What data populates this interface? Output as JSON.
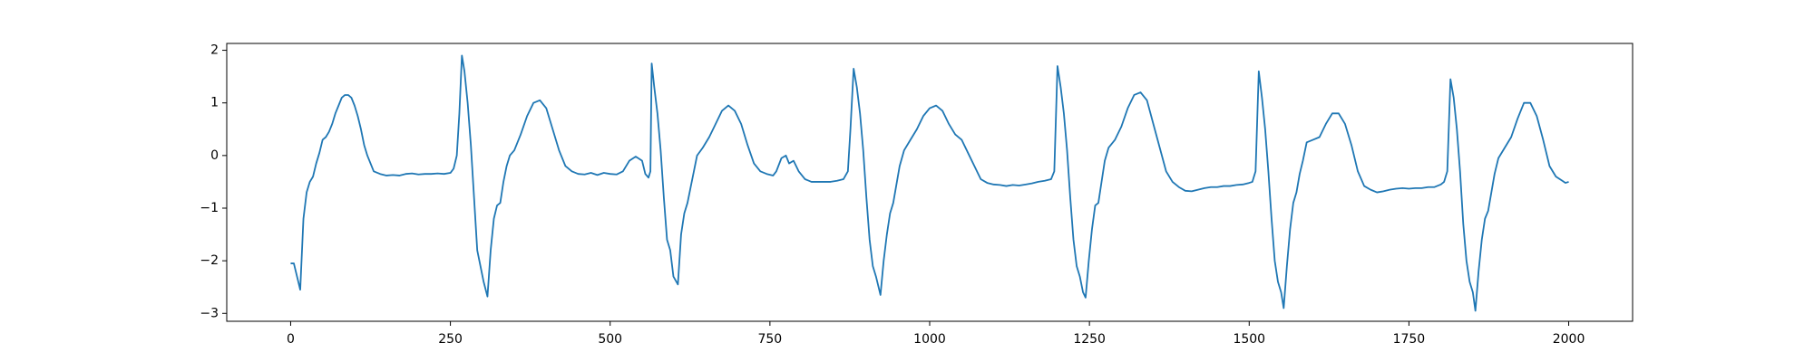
{
  "chart_data": {
    "type": "line",
    "x": [
      0,
      5,
      10,
      15,
      20,
      25,
      30,
      35,
      40,
      45,
      50,
      55,
      60,
      65,
      70,
      75,
      80,
      85,
      90,
      95,
      100,
      105,
      110,
      115,
      120,
      125,
      130,
      140,
      150,
      160,
      170,
      180,
      190,
      200,
      210,
      220,
      230,
      240,
      250,
      255,
      260,
      264,
      268,
      272,
      277,
      282,
      287,
      292,
      297,
      302,
      308,
      313,
      318,
      323,
      328,
      333,
      338,
      343,
      350,
      360,
      370,
      380,
      390,
      400,
      410,
      420,
      430,
      440,
      450,
      460,
      470,
      480,
      490,
      500,
      510,
      520,
      530,
      540,
      550,
      555,
      560,
      563,
      565,
      569,
      574,
      579,
      584,
      589,
      594,
      599,
      606,
      611,
      616,
      621,
      626,
      631,
      636,
      645,
      655,
      665,
      675,
      685,
      695,
      705,
      715,
      725,
      735,
      745,
      755,
      760,
      768,
      775,
      780,
      787,
      795,
      805,
      815,
      825,
      835,
      845,
      855,
      865,
      872,
      876,
      881,
      886,
      891,
      896,
      901,
      906,
      911,
      916,
      923,
      928,
      933,
      938,
      943,
      948,
      953,
      960,
      970,
      980,
      990,
      1000,
      1010,
      1020,
      1030,
      1040,
      1050,
      1060,
      1070,
      1080,
      1090,
      1100,
      1110,
      1120,
      1130,
      1140,
      1150,
      1160,
      1170,
      1180,
      1190,
      1195,
      1200,
      1205,
      1210,
      1215,
      1220,
      1225,
      1230,
      1235,
      1240,
      1244,
      1249,
      1254,
      1259,
      1264,
      1269,
      1274,
      1280,
      1290,
      1300,
      1310,
      1320,
      1330,
      1340,
      1350,
      1360,
      1370,
      1380,
      1390,
      1400,
      1410,
      1420,
      1430,
      1440,
      1450,
      1460,
      1470,
      1480,
      1490,
      1500,
      1505,
      1510,
      1515,
      1520,
      1525,
      1530,
      1535,
      1540,
      1545,
      1550,
      1554,
      1559,
      1564,
      1569,
      1574,
      1579,
      1584,
      1590,
      1600,
      1610,
      1620,
      1630,
      1640,
      1650,
      1660,
      1670,
      1680,
      1690,
      1700,
      1710,
      1720,
      1730,
      1740,
      1750,
      1760,
      1770,
      1780,
      1790,
      1800,
      1805,
      1810,
      1815,
      1820,
      1825,
      1830,
      1835,
      1840,
      1845,
      1850,
      1854,
      1859,
      1864,
      1869,
      1874,
      1879,
      1884,
      1890,
      1900,
      1910,
      1920,
      1930,
      1940,
      1950,
      1960,
      1970,
      1980,
      1990,
      1995,
      2000
    ],
    "series": [
      {
        "color": "#1f77b4",
        "values": [
          -2.05,
          -2.05,
          -2.3,
          -2.55,
          -1.2,
          -0.7,
          -0.5,
          -0.4,
          -0.15,
          0.05,
          0.3,
          0.35,
          0.45,
          0.6,
          0.8,
          0.95,
          1.1,
          1.15,
          1.15,
          1.1,
          0.95,
          0.75,
          0.5,
          0.2,
          0.0,
          -0.15,
          -0.3,
          -0.35,
          -0.38,
          -0.37,
          -0.38,
          -0.35,
          -0.34,
          -0.36,
          -0.35,
          -0.35,
          -0.34,
          -0.35,
          -0.33,
          -0.25,
          0.0,
          0.8,
          1.9,
          1.6,
          1.0,
          0.2,
          -0.8,
          -1.8,
          -2.1,
          -2.4,
          -2.68,
          -1.8,
          -1.2,
          -0.95,
          -0.9,
          -0.5,
          -0.2,
          0.0,
          0.1,
          0.4,
          0.75,
          1.0,
          1.05,
          0.9,
          0.5,
          0.1,
          -0.2,
          -0.3,
          -0.35,
          -0.36,
          -0.33,
          -0.37,
          -0.33,
          -0.35,
          -0.36,
          -0.3,
          -0.1,
          -0.02,
          -0.1,
          -0.35,
          -0.42,
          -0.3,
          1.75,
          1.3,
          0.8,
          0.1,
          -0.8,
          -1.6,
          -1.8,
          -2.3,
          -2.45,
          -1.5,
          -1.1,
          -0.9,
          -0.6,
          -0.3,
          0.0,
          0.15,
          0.35,
          0.6,
          0.85,
          0.95,
          0.85,
          0.6,
          0.2,
          -0.15,
          -0.3,
          -0.35,
          -0.38,
          -0.3,
          -0.05,
          0.0,
          -0.15,
          -0.1,
          -0.3,
          -0.45,
          -0.5,
          -0.5,
          -0.5,
          -0.5,
          -0.48,
          -0.45,
          -0.3,
          0.5,
          1.65,
          1.3,
          0.8,
          0.1,
          -0.8,
          -1.6,
          -2.1,
          -2.3,
          -2.65,
          -2.0,
          -1.5,
          -1.1,
          -0.9,
          -0.55,
          -0.2,
          0.1,
          0.3,
          0.5,
          0.75,
          0.9,
          0.95,
          0.85,
          0.6,
          0.4,
          0.3,
          0.05,
          -0.2,
          -0.45,
          -0.52,
          -0.55,
          -0.56,
          -0.58,
          -0.56,
          -0.57,
          -0.55,
          -0.53,
          -0.5,
          -0.48,
          -0.45,
          -0.3,
          1.7,
          1.3,
          0.8,
          0.1,
          -0.8,
          -1.6,
          -2.1,
          -2.3,
          -2.6,
          -2.7,
          -2.0,
          -1.4,
          -0.95,
          -0.9,
          -0.5,
          -0.1,
          0.15,
          0.3,
          0.55,
          0.9,
          1.15,
          1.2,
          1.05,
          0.6,
          0.15,
          -0.3,
          -0.5,
          -0.6,
          -0.67,
          -0.68,
          -0.65,
          -0.62,
          -0.6,
          -0.6,
          -0.58,
          -0.58,
          -0.56,
          -0.55,
          -0.52,
          -0.5,
          -0.3,
          1.6,
          1.1,
          0.5,
          -0.3,
          -1.2,
          -2.0,
          -2.4,
          -2.6,
          -2.9,
          -2.1,
          -1.4,
          -0.9,
          -0.7,
          -0.35,
          -0.1,
          0.25,
          0.3,
          0.35,
          0.6,
          0.8,
          0.8,
          0.6,
          0.2,
          -0.3,
          -0.58,
          -0.65,
          -0.7,
          -0.68,
          -0.65,
          -0.63,
          -0.62,
          -0.63,
          -0.62,
          -0.62,
          -0.6,
          -0.6,
          -0.55,
          -0.5,
          -0.3,
          1.45,
          1.1,
          0.5,
          -0.3,
          -1.3,
          -2.0,
          -2.4,
          -2.6,
          -2.95,
          -2.2,
          -1.6,
          -1.2,
          -1.05,
          -0.7,
          -0.35,
          -0.05,
          0.15,
          0.35,
          0.7,
          1.0,
          1.0,
          0.75,
          0.3,
          -0.2,
          -0.4,
          -0.48,
          -0.52,
          -0.5
        ]
      }
    ],
    "xlim": [
      -100,
      2100
    ],
    "xticks": [
      0,
      250,
      500,
      750,
      1000,
      1250,
      1500,
      1750,
      2000
    ],
    "ylim": [
      -3.15,
      2.13
    ],
    "yticks": [
      {
        "value": -3,
        "label": "−3"
      },
      {
        "value": -2,
        "label": "−2"
      },
      {
        "value": -1,
        "label": "−1"
      },
      0,
      1,
      2
    ]
  }
}
